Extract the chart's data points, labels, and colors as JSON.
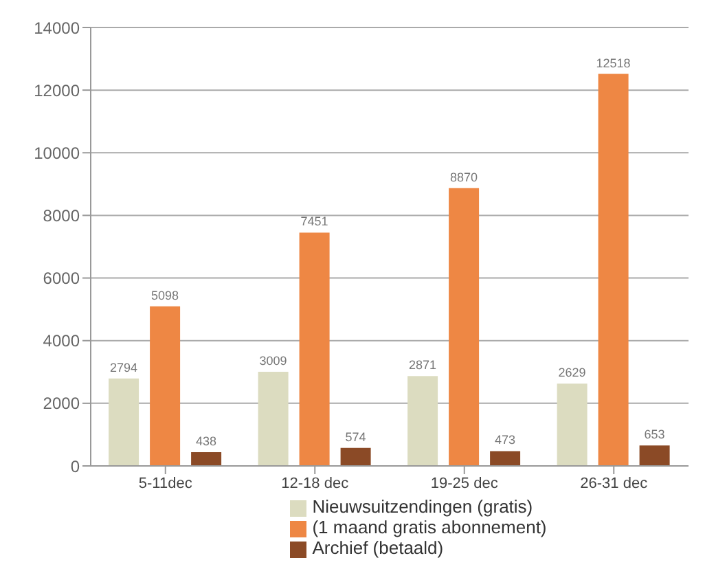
{
  "chart_data": {
    "type": "bar",
    "categories": [
      "5-11dec",
      "12-18 dec",
      "19-25 dec",
      "26-31 dec"
    ],
    "series": [
      {
        "name": "Nieuwsuitzendingen (gratis)",
        "color": "#dcdcc0",
        "values": [
          2794,
          3009,
          2871,
          2629
        ]
      },
      {
        "name": "(1 maand gratis abonnement)",
        "color": "#ee8744",
        "values": [
          5098,
          7451,
          8870,
          12518
        ]
      },
      {
        "name": "Archief (betaald)",
        "color": "#8b4a26",
        "values": [
          438,
          574,
          473,
          653
        ]
      }
    ],
    "ylim": [
      0,
      14000
    ],
    "yticks": [
      0,
      2000,
      4000,
      6000,
      8000,
      10000,
      12000,
      14000
    ],
    "grid": "y",
    "legend": "bottom",
    "data_labels": true
  }
}
